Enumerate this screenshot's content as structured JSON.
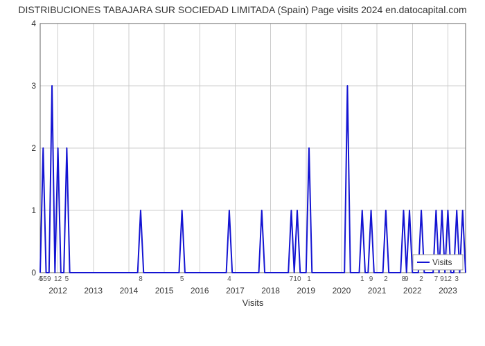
{
  "title": "DISTRIBUCIONES TABAJARA SUR SOCIEDAD LIMITADA (Spain) Page visits 2024 en.datocapital.com",
  "chart": {
    "type": "line",
    "ylim": [
      0,
      4
    ],
    "yticks": [
      0,
      1,
      2,
      3,
      4
    ],
    "line_color": "#1414d2",
    "line_width": 2,
    "grid_color": "#cccccc",
    "border_color": "#666666",
    "background_color": "#ffffff",
    "xlabel": "Visits",
    "legend": {
      "label": "Visits"
    },
    "title_fontsize": 14,
    "tick_fontsize": 12,
    "small_tick_fontsize": 10,
    "values": [
      0,
      2,
      0,
      0,
      3,
      0,
      2,
      0,
      0,
      2,
      0,
      0,
      0,
      0,
      0,
      0,
      0,
      0,
      0,
      0,
      0,
      0,
      0,
      0,
      0,
      0,
      0,
      0,
      0,
      0,
      0,
      0,
      0,
      0,
      1,
      0,
      0,
      0,
      0,
      0,
      0,
      0,
      0,
      0,
      0,
      0,
      0,
      0,
      1,
      0,
      0,
      0,
      0,
      0,
      0,
      0,
      0,
      0,
      0,
      0,
      0,
      0,
      0,
      0,
      1,
      0,
      0,
      0,
      0,
      0,
      0,
      0,
      0,
      0,
      0,
      1,
      0,
      0,
      0,
      0,
      0,
      0,
      0,
      0,
      0,
      1,
      0,
      1,
      0,
      0,
      0,
      2,
      0,
      0,
      0,
      0,
      0,
      0,
      0,
      0,
      0,
      0,
      0,
      0,
      3,
      0,
      0,
      0,
      0,
      1,
      0,
      0,
      1,
      0,
      0,
      0,
      0,
      1,
      0,
      0,
      0,
      0,
      0,
      1,
      0,
      1,
      0,
      0,
      0,
      1,
      0,
      0,
      0,
      0,
      1,
      0,
      1,
      0,
      1,
      0,
      0,
      1,
      0,
      1,
      0
    ],
    "point_labels": [
      {
        "idx": 0,
        "label": "4"
      },
      {
        "idx": 1,
        "label": "55"
      },
      {
        "idx": 3,
        "label": "9"
      },
      {
        "idx": 4,
        "label": ""
      },
      {
        "idx": 6,
        "label": "12"
      },
      {
        "idx": 9,
        "label": "5"
      },
      {
        "idx": 34,
        "label": "8"
      },
      {
        "idx": 48,
        "label": "5"
      },
      {
        "idx": 64,
        "label": "4"
      },
      {
        "idx": 85,
        "label": "7"
      },
      {
        "idx": 87,
        "label": "10"
      },
      {
        "idx": 91,
        "label": "1"
      },
      {
        "idx": 109,
        "label": "1"
      },
      {
        "idx": 112,
        "label": "9"
      },
      {
        "idx": 117,
        "label": "2"
      },
      {
        "idx": 123,
        "label": "8"
      },
      {
        "idx": 124,
        "label": "9"
      },
      {
        "idx": 129,
        "label": "2"
      },
      {
        "idx": 134,
        "label": "7"
      },
      {
        "idx": 136,
        "label": "9"
      },
      {
        "idx": 138,
        "label": "12"
      },
      {
        "idx": 141,
        "label": "3"
      },
      {
        "idx": 143,
        "label": ""
      }
    ],
    "year_ticks": [
      {
        "idx": 6,
        "label": "2012"
      },
      {
        "idx": 18,
        "label": "2013"
      },
      {
        "idx": 30,
        "label": "2014"
      },
      {
        "idx": 42,
        "label": "2015"
      },
      {
        "idx": 54,
        "label": "2016"
      },
      {
        "idx": 66,
        "label": "2017"
      },
      {
        "idx": 78,
        "label": "2018"
      },
      {
        "idx": 90,
        "label": "2019"
      },
      {
        "idx": 102,
        "label": "2020"
      },
      {
        "idx": 114,
        "label": "2021"
      },
      {
        "idx": 126,
        "label": "2022"
      },
      {
        "idx": 138,
        "label": "2023"
      }
    ]
  }
}
